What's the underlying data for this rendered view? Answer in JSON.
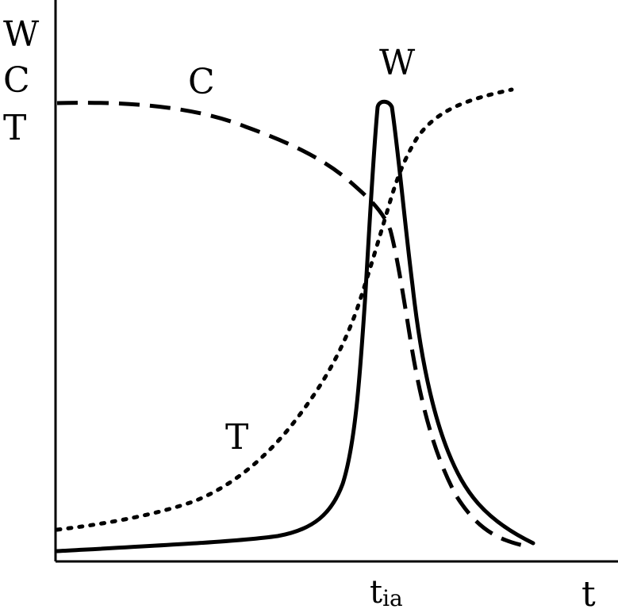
{
  "diagram": {
    "y_axis_labels": [
      "W",
      "C",
      "T"
    ],
    "x_axis_label": "t",
    "tick_label": {
      "main": "t",
      "sub": "ia"
    },
    "curve_labels": {
      "W": "W",
      "C": "C",
      "T": "T"
    },
    "colors": {
      "ink": "#000000",
      "background": "#ffffff"
    },
    "curves": [
      {
        "id": "W",
        "style": "solid"
      },
      {
        "id": "C",
        "style": "dashed"
      },
      {
        "id": "T",
        "style": "dotted"
      }
    ]
  }
}
